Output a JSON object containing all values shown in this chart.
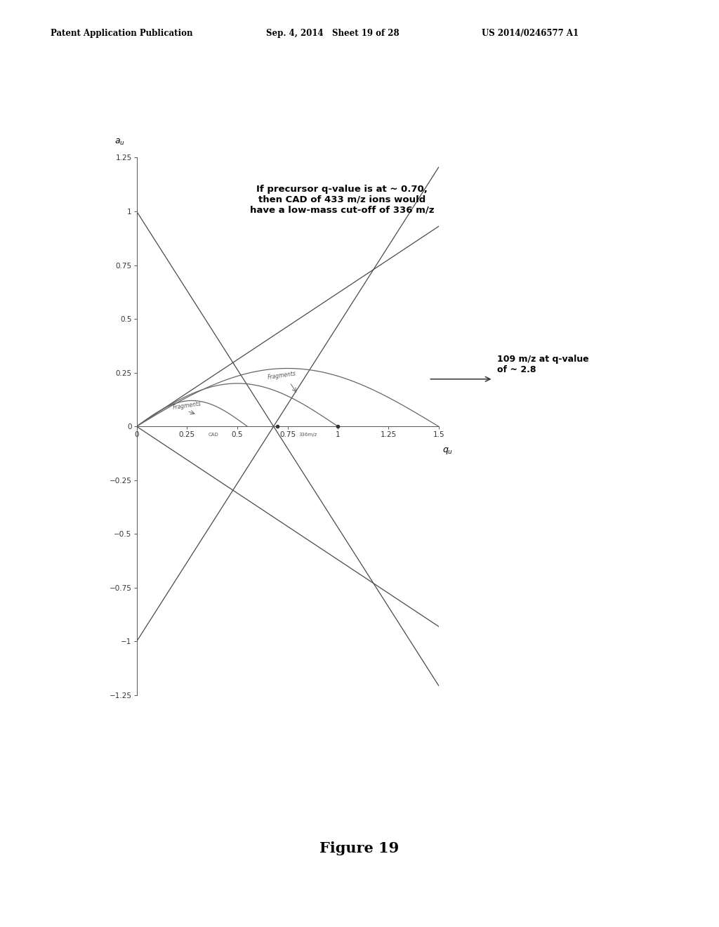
{
  "header_left": "Patent Application Publication",
  "header_mid": "Sep. 4, 2014   Sheet 19 of 28",
  "header_right": "US 2014/0246577 A1",
  "footer": "Figure 19",
  "bg_color": "#ffffff",
  "text_color": "#000000",
  "annotation_text": "If precursor q-value is at ~ 0.70,\nthen CAD of 433 m/z ions would\nhave a low-mass cut-off of 336 m/z",
  "arrow_label": "109 m/z at q-value\nof ~ 2.8",
  "xlim": [
    0,
    1.5
  ],
  "ylim": [
    -1.25,
    1.25
  ],
  "xticks": [
    0,
    0.25,
    0.5,
    0.75,
    1,
    1.25,
    1.5
  ],
  "yticks": [
    -1.25,
    -1,
    -0.75,
    -0.5,
    -0.25,
    0,
    0.25,
    0.5,
    0.75,
    1,
    1.25
  ],
  "ytick_labels": [
    "−1.25",
    "−1",
    "−0.75",
    "−0.5",
    "−0.25",
    "0",
    "0.25",
    "0.5",
    "0.75",
    "1",
    "1.25"
  ],
  "line_color": "#4a4a4a",
  "arch_color": "#666666"
}
